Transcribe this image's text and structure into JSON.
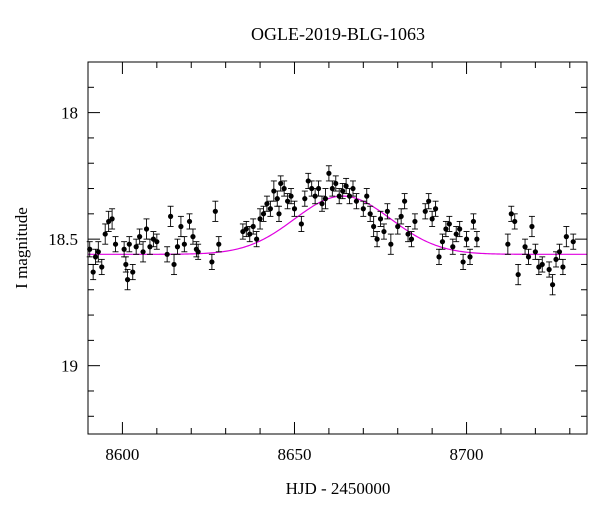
{
  "chart_data": {
    "type": "scatter",
    "title": "OGLE-2019-BLG-1063",
    "xlabel": "HJD - 2450000",
    "ylabel": "I magnitude",
    "xlim": [
      8590,
      8735
    ],
    "ylim": [
      19.27,
      17.8
    ],
    "y_inverted": true,
    "grid": false,
    "legend": "none",
    "x_ticks": [
      8600,
      8650,
      8700
    ],
    "x_tick_labels": [
      "8600",
      "8650",
      "8700"
    ],
    "y_ticks": [
      18,
      18.5,
      19
    ],
    "y_tick_labels": [
      "18",
      "18.5",
      "19"
    ],
    "colors": {
      "points": "#000000",
      "model": "#e000e0"
    },
    "model": {
      "t0": 8664,
      "baseline_mag": 18.56,
      "peak_mag": 18.33,
      "sigma_days": 14
    },
    "series": [
      {
        "values": [
          {
            "x": 8590.5,
            "y": 18.54,
            "err": 0.03
          },
          {
            "x": 8591.5,
            "y": 18.63,
            "err": 0.03
          },
          {
            "x": 8592.2,
            "y": 18.57,
            "err": 0.03
          },
          {
            "x": 8593.0,
            "y": 18.55,
            "err": 0.04
          },
          {
            "x": 8594.0,
            "y": 18.61,
            "err": 0.03
          },
          {
            "x": 8595.0,
            "y": 18.48,
            "err": 0.04
          },
          {
            "x": 8596.0,
            "y": 18.43,
            "err": 0.04
          },
          {
            "x": 8597.0,
            "y": 18.42,
            "err": 0.04
          },
          {
            "x": 8598.0,
            "y": 18.52,
            "err": 0.03
          },
          {
            "x": 8600.5,
            "y": 18.54,
            "err": 0.03
          },
          {
            "x": 8601.0,
            "y": 18.6,
            "err": 0.03
          },
          {
            "x": 8601.5,
            "y": 18.66,
            "err": 0.04
          },
          {
            "x": 8602.0,
            "y": 18.52,
            "err": 0.03
          },
          {
            "x": 8603.0,
            "y": 18.63,
            "err": 0.03
          },
          {
            "x": 8604.0,
            "y": 18.53,
            "err": 0.03
          },
          {
            "x": 8605.0,
            "y": 18.49,
            "err": 0.03
          },
          {
            "x": 8606.0,
            "y": 18.55,
            "err": 0.04
          },
          {
            "x": 8607.0,
            "y": 18.46,
            "err": 0.04
          },
          {
            "x": 8608.0,
            "y": 18.53,
            "err": 0.03
          },
          {
            "x": 8609.0,
            "y": 18.5,
            "err": 0.03
          },
          {
            "x": 8610.0,
            "y": 18.51,
            "err": 0.03
          },
          {
            "x": 8613.0,
            "y": 18.56,
            "err": 0.03
          },
          {
            "x": 8614.0,
            "y": 18.41,
            "err": 0.04
          },
          {
            "x": 8615.0,
            "y": 18.6,
            "err": 0.04
          },
          {
            "x": 8616.0,
            "y": 18.53,
            "err": 0.03
          },
          {
            "x": 8617.0,
            "y": 18.45,
            "err": 0.04
          },
          {
            "x": 8618.0,
            "y": 18.52,
            "err": 0.03
          },
          {
            "x": 8619.5,
            "y": 18.43,
            "err": 0.03
          },
          {
            "x": 8620.5,
            "y": 18.49,
            "err": 0.03
          },
          {
            "x": 8621.5,
            "y": 18.54,
            "err": 0.03
          },
          {
            "x": 8622.0,
            "y": 18.55,
            "err": 0.03
          },
          {
            "x": 8626.0,
            "y": 18.59,
            "err": 0.03
          },
          {
            "x": 8627.0,
            "y": 18.39,
            "err": 0.04
          },
          {
            "x": 8628.0,
            "y": 18.52,
            "err": 0.03
          },
          {
            "x": 8635.0,
            "y": 18.47,
            "err": 0.03
          },
          {
            "x": 8636.0,
            "y": 18.46,
            "err": 0.03
          },
          {
            "x": 8637.0,
            "y": 18.48,
            "err": 0.03
          },
          {
            "x": 8638.0,
            "y": 18.45,
            "err": 0.03
          },
          {
            "x": 8639.0,
            "y": 18.5,
            "err": 0.03
          },
          {
            "x": 8640.0,
            "y": 18.42,
            "err": 0.04
          },
          {
            "x": 8641.0,
            "y": 18.4,
            "err": 0.03
          },
          {
            "x": 8642.0,
            "y": 18.36,
            "err": 0.03
          },
          {
            "x": 8643.0,
            "y": 18.38,
            "err": 0.03
          },
          {
            "x": 8644.0,
            "y": 18.31,
            "err": 0.04
          },
          {
            "x": 8645.0,
            "y": 18.34,
            "err": 0.03
          },
          {
            "x": 8645.5,
            "y": 18.4,
            "err": 0.03
          },
          {
            "x": 8646.0,
            "y": 18.28,
            "err": 0.03
          },
          {
            "x": 8647.0,
            "y": 18.3,
            "err": 0.03
          },
          {
            "x": 8648.0,
            "y": 18.35,
            "err": 0.03
          },
          {
            "x": 8649.0,
            "y": 18.33,
            "err": 0.03
          },
          {
            "x": 8650.0,
            "y": 18.38,
            "err": 0.03
          },
          {
            "x": 8652.0,
            "y": 18.44,
            "err": 0.03
          },
          {
            "x": 8653.0,
            "y": 18.34,
            "err": 0.03
          },
          {
            "x": 8654.0,
            "y": 18.27,
            "err": 0.03
          },
          {
            "x": 8655.0,
            "y": 18.3,
            "err": 0.03
          },
          {
            "x": 8656.0,
            "y": 18.33,
            "err": 0.03
          },
          {
            "x": 8657.0,
            "y": 18.3,
            "err": 0.03
          },
          {
            "x": 8658.0,
            "y": 18.36,
            "err": 0.03
          },
          {
            "x": 8659.0,
            "y": 18.34,
            "err": 0.04
          },
          {
            "x": 8660.0,
            "y": 18.24,
            "err": 0.03
          },
          {
            "x": 8661.0,
            "y": 18.3,
            "err": 0.03
          },
          {
            "x": 8662.0,
            "y": 18.28,
            "err": 0.03
          },
          {
            "x": 8663.0,
            "y": 18.33,
            "err": 0.03
          },
          {
            "x": 8664.0,
            "y": 18.31,
            "err": 0.03
          },
          {
            "x": 8665.0,
            "y": 18.29,
            "err": 0.03
          },
          {
            "x": 8666.0,
            "y": 18.33,
            "err": 0.03
          },
          {
            "x": 8667.0,
            "y": 18.3,
            "err": 0.03
          },
          {
            "x": 8668.0,
            "y": 18.35,
            "err": 0.03
          },
          {
            "x": 8670.0,
            "y": 18.38,
            "err": 0.03
          },
          {
            "x": 8671.0,
            "y": 18.33,
            "err": 0.03
          },
          {
            "x": 8672.0,
            "y": 18.4,
            "err": 0.03
          },
          {
            "x": 8673.0,
            "y": 18.45,
            "err": 0.04
          },
          {
            "x": 8674.0,
            "y": 18.5,
            "err": 0.03
          },
          {
            "x": 8675.0,
            "y": 18.42,
            "err": 0.03
          },
          {
            "x": 8676.0,
            "y": 18.47,
            "err": 0.03
          },
          {
            "x": 8677.0,
            "y": 18.39,
            "err": 0.03
          },
          {
            "x": 8678.0,
            "y": 18.52,
            "err": 0.04
          },
          {
            "x": 8680.0,
            "y": 18.45,
            "err": 0.03
          },
          {
            "x": 8681.0,
            "y": 18.41,
            "err": 0.03
          },
          {
            "x": 8682.0,
            "y": 18.35,
            "err": 0.03
          },
          {
            "x": 8683.0,
            "y": 18.48,
            "err": 0.03
          },
          {
            "x": 8684.0,
            "y": 18.5,
            "err": 0.03
          },
          {
            "x": 8685.0,
            "y": 18.43,
            "err": 0.03
          },
          {
            "x": 8688.0,
            "y": 18.39,
            "err": 0.03
          },
          {
            "x": 8689.0,
            "y": 18.35,
            "err": 0.03
          },
          {
            "x": 8690.0,
            "y": 18.42,
            "err": 0.03
          },
          {
            "x": 8691.0,
            "y": 18.38,
            "err": 0.03
          },
          {
            "x": 8692.0,
            "y": 18.57,
            "err": 0.03
          },
          {
            "x": 8693.0,
            "y": 18.51,
            "err": 0.03
          },
          {
            "x": 8694.0,
            "y": 18.46,
            "err": 0.03
          },
          {
            "x": 8695.0,
            "y": 18.44,
            "err": 0.03
          },
          {
            "x": 8696.0,
            "y": 18.53,
            "err": 0.03
          },
          {
            "x": 8697.0,
            "y": 18.48,
            "err": 0.03
          },
          {
            "x": 8698.0,
            "y": 18.46,
            "err": 0.03
          },
          {
            "x": 8699.0,
            "y": 18.59,
            "err": 0.03
          },
          {
            "x": 8700.0,
            "y": 18.5,
            "err": 0.03
          },
          {
            "x": 8701.0,
            "y": 18.57,
            "err": 0.03
          },
          {
            "x": 8702.0,
            "y": 18.43,
            "err": 0.03
          },
          {
            "x": 8703.0,
            "y": 18.5,
            "err": 0.03
          },
          {
            "x": 8712.0,
            "y": 18.52,
            "err": 0.04
          },
          {
            "x": 8713.0,
            "y": 18.4,
            "err": 0.03
          },
          {
            "x": 8714.0,
            "y": 18.43,
            "err": 0.03
          },
          {
            "x": 8715.0,
            "y": 18.64,
            "err": 0.04
          },
          {
            "x": 8717.0,
            "y": 18.53,
            "err": 0.03
          },
          {
            "x": 8718.0,
            "y": 18.57,
            "err": 0.03
          },
          {
            "x": 8719.0,
            "y": 18.45,
            "err": 0.04
          },
          {
            "x": 8720.0,
            "y": 18.55,
            "err": 0.03
          },
          {
            "x": 8721.0,
            "y": 18.61,
            "err": 0.03
          },
          {
            "x": 8722.0,
            "y": 18.6,
            "err": 0.03
          },
          {
            "x": 8724.0,
            "y": 18.62,
            "err": 0.03
          },
          {
            "x": 8725.0,
            "y": 18.68,
            "err": 0.04
          },
          {
            "x": 8726.0,
            "y": 18.58,
            "err": 0.03
          },
          {
            "x": 8727.0,
            "y": 18.55,
            "err": 0.03
          },
          {
            "x": 8728.0,
            "y": 18.61,
            "err": 0.03
          },
          {
            "x": 8729.0,
            "y": 18.49,
            "err": 0.04
          },
          {
            "x": 8731.0,
            "y": 18.51,
            "err": 0.03
          }
        ]
      }
    ]
  }
}
